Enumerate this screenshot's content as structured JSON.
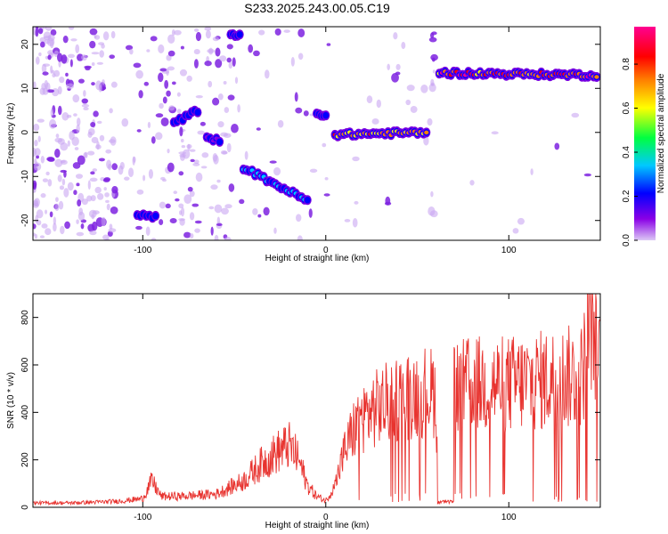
{
  "figure_title": "S233.2025.243.00.05.C19",
  "colors": {
    "snr_line": "#e8332f",
    "blob_purple": "#7e22e0",
    "blob_light": "#c9a6f2",
    "colorbar_stops": [
      "#dcc8f5",
      "#8a00e6",
      "#0000ff",
      "#00c8ff",
      "#00ff40",
      "#ffff00",
      "#ff8000",
      "#ff0000",
      "#ff0090"
    ]
  },
  "chart_data": [
    {
      "type": "heatmap",
      "title": "",
      "xlabel": "Height of straight line (km)",
      "ylabel": "Frequency (Hz)",
      "xlim": [
        -160,
        150
      ],
      "ylim": [
        -24.5,
        24
      ],
      "xticks": [
        -100,
        0,
        100
      ],
      "yticks": [
        -20,
        -10,
        0,
        10,
        20
      ],
      "colorbar": {
        "label": "Normalized spectral amplitude",
        "range": [
          0,
          0.97
        ],
        "ticks": [
          0.0,
          0.2,
          0.4,
          0.6,
          0.8
        ]
      },
      "ridges": [
        {
          "x": [
            -103,
            -93
          ],
          "y": [
            -19,
            -19
          ],
          "amplitude": 0.3
        },
        {
          "x": [
            -83,
            -70
          ],
          "y": [
            2,
            5
          ],
          "amplitude": 0.3
        },
        {
          "x": [
            -65,
            -58
          ],
          "y": [
            -1,
            -2
          ],
          "amplitude": 0.2
        },
        {
          "x": [
            -45,
            -10
          ],
          "y": [
            -8,
            -15.5
          ],
          "amplitude": 0.4
        },
        {
          "x": [
            -52,
            -47
          ],
          "y": [
            22,
            22
          ],
          "amplitude": 0.3
        },
        {
          "x": [
            -5,
            0
          ],
          "y": [
            4,
            4
          ],
          "amplitude": 0.3
        },
        {
          "x": [
            5,
            55
          ],
          "y": [
            -0.5,
            0
          ],
          "amplitude": 0.85
        },
        {
          "x": [
            62,
            148
          ],
          "y": [
            13.5,
            13
          ],
          "amplitude": 0.95
        }
      ],
      "dead_band_x": [
        57,
        60
      ]
    },
    {
      "type": "line",
      "title": "",
      "xlabel": "Height of straight line (km)",
      "ylabel": "SNR (10 * v/v)",
      "xlim": [
        -160,
        150
      ],
      "ylim": [
        0,
        900
      ],
      "xticks": [
        -100,
        0,
        100
      ],
      "yticks": [
        0,
        200,
        400,
        600,
        800
      ],
      "series": [
        {
          "x": [
            -160,
            -140,
            -120,
            -110,
            -100,
            -95,
            -90,
            -80,
            -70,
            -60,
            -55,
            -50,
            -45,
            -40,
            -35,
            -30,
            -25,
            -20,
            -15,
            -10,
            -5,
            0,
            5,
            10,
            15,
            20,
            25,
            30,
            35,
            40,
            45,
            50,
            55,
            60,
            62,
            65,
            67,
            70,
            75,
            80,
            90,
            100,
            110,
            120,
            130,
            140,
            145,
            150
          ],
          "y": [
            20,
            20,
            25,
            30,
            40,
            120,
            50,
            50,
            55,
            60,
            80,
            100,
            120,
            160,
            200,
            230,
            260,
            280,
            220,
            100,
            50,
            30,
            100,
            250,
            350,
            410,
            440,
            460,
            480,
            500,
            510,
            520,
            530,
            520,
            20,
            20,
            20,
            540,
            550,
            560,
            560,
            560,
            570,
            580,
            590,
            600,
            880,
            620
          ]
        }
      ]
    }
  ]
}
